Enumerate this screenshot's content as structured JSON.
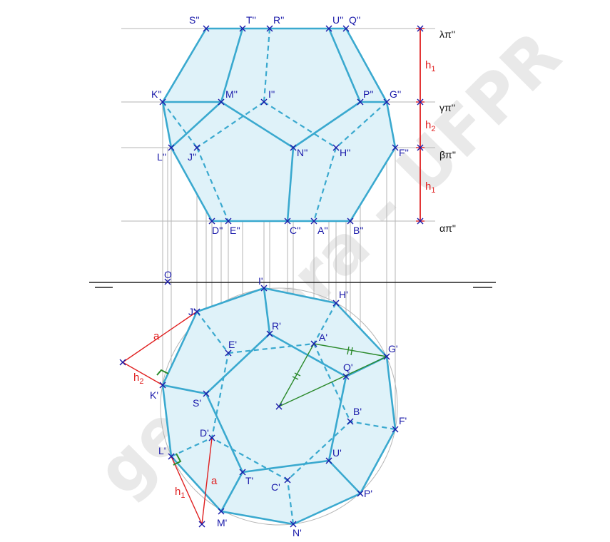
{
  "watermark": "geogebra - UFPR",
  "plane_labels": [
    "λπ''",
    "γπ''",
    "βπ''",
    "απ''"
  ],
  "height_labels": [
    {
      "base": "h",
      "sub": "1"
    },
    {
      "base": "h",
      "sub": "2"
    },
    {
      "base": "h",
      "sub": "1"
    },
    {
      "base": "h",
      "sub": "2"
    },
    {
      "base": "h",
      "sub": "1"
    }
  ],
  "construction_labels": [
    "a",
    "a"
  ],
  "center_label": "O",
  "front_view_labels": [
    "S''",
    "T''",
    "R''",
    "U''",
    "Q''",
    "K''",
    "M''",
    "I''",
    "P''",
    "G''",
    "L''",
    "J''",
    "N''",
    "H''",
    "F''",
    "D''",
    "E''",
    "C''",
    "A''",
    "B''"
  ],
  "top_view_labels": [
    "I'",
    "H'",
    "J'",
    "R'",
    "A'",
    "E'",
    "G'",
    "Q'",
    "K'",
    "S'",
    "B'",
    "F'",
    "D'",
    "L'",
    "U'",
    "T'",
    "C'",
    "P'",
    "M'",
    "N'"
  ],
  "colors": {
    "edge": "#3aa9cf",
    "face": "#dff2f9",
    "marker": "#1a1aaa",
    "construction_red": "#e02020",
    "construction_green": "#2b8a2b",
    "guide": "#b5b5b5"
  }
}
